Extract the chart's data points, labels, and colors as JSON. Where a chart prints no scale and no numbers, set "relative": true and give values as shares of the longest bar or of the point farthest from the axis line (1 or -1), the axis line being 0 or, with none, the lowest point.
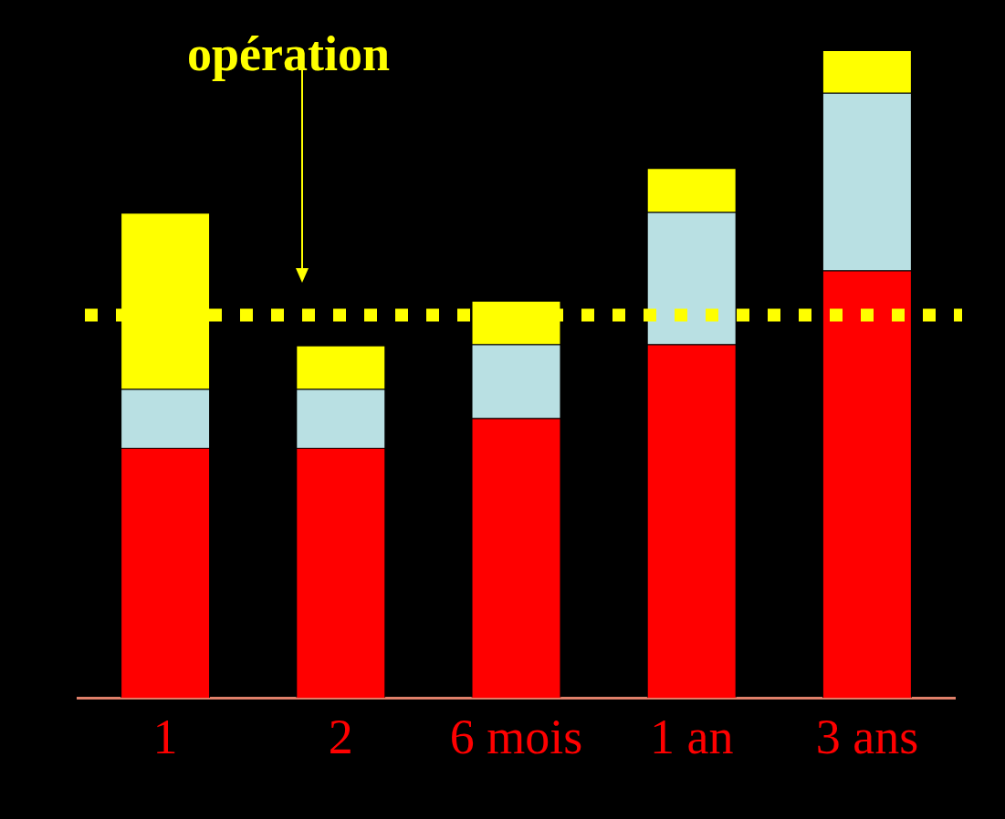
{
  "chart_data": {
    "type": "bar",
    "relative": true,
    "stacked": true,
    "legend": false,
    "categories": [
      "1",
      "2",
      "6 mois",
      "1 an",
      "3 ans"
    ],
    "series": [
      {
        "color": "#ff0000",
        "values": [
          0.386,
          0.386,
          0.432,
          0.546,
          0.66
        ]
      },
      {
        "color": "#b9e0e3",
        "values": [
          0.091,
          0.091,
          0.114,
          0.204,
          0.274
        ]
      },
      {
        "color": "#ffff00",
        "values": [
          0.272,
          0.067,
          0.067,
          0.068,
          0.066
        ]
      }
    ],
    "ref_lines": [
      {
        "axis": "y",
        "value": 0.591,
        "color": "#ffff00",
        "line_style": "dotted"
      }
    ],
    "annotations": [
      "opération"
    ]
  }
}
